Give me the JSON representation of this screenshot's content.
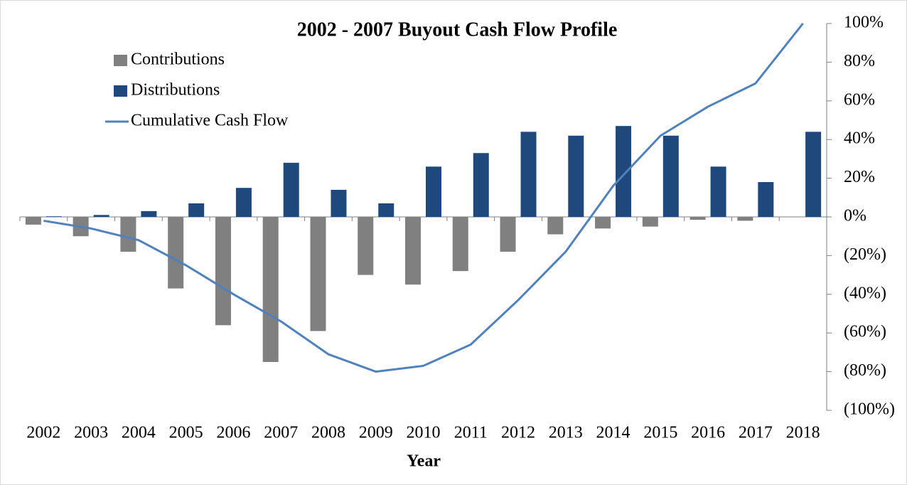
{
  "chart_data": {
    "type": "bar",
    "title": "2002 - 2007 Buyout Cash Flow Profile",
    "x_label": "Year",
    "categories": [
      "2002",
      "2003",
      "2004",
      "2005",
      "2006",
      "2007",
      "2008",
      "2009",
      "2010",
      "2011",
      "2012",
      "2013",
      "2014",
      "2015",
      "2016",
      "2017",
      "2018"
    ],
    "series": [
      {
        "name": "Contributions",
        "type": "bar",
        "color": "#808080",
        "values": [
          -4,
          -10,
          -18,
          -37,
          -56,
          -75,
          -59,
          -30,
          -35,
          -28,
          -18,
          -9,
          -6,
          -5,
          -1.5,
          -2,
          0
        ]
      },
      {
        "name": "Distributions",
        "type": "bar",
        "color": "#1f497d",
        "values": [
          0.3,
          1,
          3,
          7,
          15,
          28,
          14,
          7,
          26,
          33,
          44,
          42,
          47,
          42,
          26,
          18,
          44
        ]
      },
      {
        "name": "Cumulative Cash Flow",
        "type": "line",
        "color": "#4f81bd",
        "values": [
          -2,
          -6,
          -12,
          -25,
          -40,
          -54,
          -71,
          -80,
          -77,
          -66,
          -43,
          -18,
          16,
          42,
          57,
          69,
          100
        ]
      }
    ],
    "ylim": [
      -100,
      100
    ],
    "yticks": [
      {
        "value": 100,
        "label": "100%"
      },
      {
        "value": 80,
        "label": "80%"
      },
      {
        "value": 60,
        "label": "60%"
      },
      {
        "value": 40,
        "label": "40%"
      },
      {
        "value": 20,
        "label": "20%"
      },
      {
        "value": 0,
        "label": "0%"
      },
      {
        "value": -20,
        "label": "(20%)"
      },
      {
        "value": -40,
        "label": "(40%)"
      },
      {
        "value": -60,
        "label": "(60%)"
      },
      {
        "value": -80,
        "label": "(80%)"
      },
      {
        "value": -100,
        "label": "(100%)"
      }
    ],
    "y_axis_side": "right",
    "legend": "top-left"
  }
}
